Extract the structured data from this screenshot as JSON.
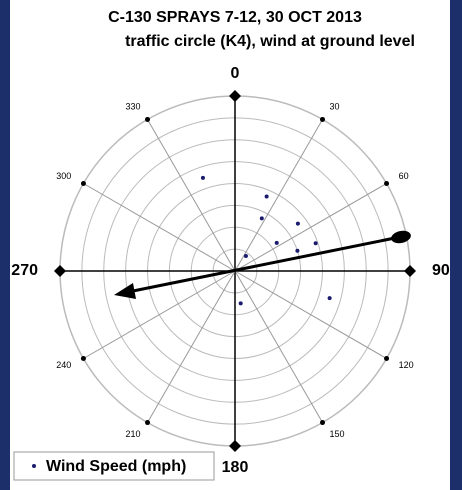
{
  "chart_data": {
    "type": "polar_scatter",
    "title": "C-130 SPRAYS 7-12, 30 OCT 2013",
    "subtitle": "traffic circle (K4), wind at ground level",
    "thetaticks": [
      0,
      30,
      60,
      90,
      120,
      150,
      180,
      210,
      240,
      270,
      300,
      330
    ],
    "rlim": [
      0,
      8
    ],
    "rticks": [
      1,
      2,
      3,
      4,
      5,
      6,
      7,
      8
    ],
    "series": [
      {
        "name": "Wind Speed (mph)",
        "color": "#1a1a6e",
        "theta": [
          341,
          23,
          27,
          53,
          56,
          36,
          72,
          71,
          106,
          170
        ],
        "values": [
          4.5,
          3.7,
          2.7,
          3.6,
          2.3,
          0.85,
          3.0,
          3.9,
          4.5,
          1.5
        ]
      }
    ]
  }
}
